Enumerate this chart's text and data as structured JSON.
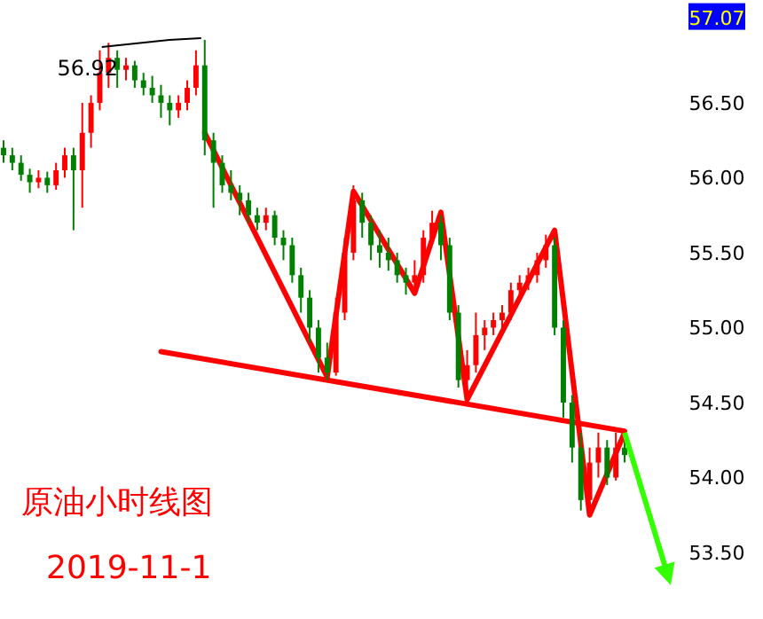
{
  "chart_data": {
    "type": "candlestick",
    "title": "原油小时线图",
    "subtitle": "2019-11-1",
    "categories": [
      null,
      null,
      null,
      null,
      null,
      null,
      null,
      null,
      null,
      null,
      null,
      null,
      null,
      null,
      null,
      null,
      null,
      null,
      null,
      null,
      null,
      null,
      null,
      null,
      null,
      null,
      null,
      null,
      null,
      null,
      null,
      null,
      null,
      null,
      null,
      null,
      null,
      null,
      null,
      null,
      null,
      null,
      null,
      null,
      null,
      null,
      null,
      null,
      null,
      null,
      null,
      null,
      null,
      null,
      null,
      null,
      null,
      null,
      null,
      null,
      null,
      null,
      null,
      null,
      null,
      null,
      null,
      null,
      null,
      null,
      null,
      null
    ],
    "ohlc": [
      [
        56.2,
        56.25,
        56.1,
        56.15
      ],
      [
        56.15,
        56.2,
        56.05,
        56.1
      ],
      [
        56.1,
        56.15,
        55.98,
        56.02
      ],
      [
        56.02,
        56.06,
        55.9,
        55.97
      ],
      [
        55.97,
        56.05,
        55.93,
        56.0
      ],
      [
        56.0,
        56.04,
        55.9,
        55.95
      ],
      [
        55.95,
        56.1,
        55.92,
        56.05
      ],
      [
        56.05,
        56.2,
        56.0,
        56.15
      ],
      [
        56.15,
        56.2,
        55.65,
        56.05
      ],
      [
        56.05,
        56.5,
        55.8,
        56.3
      ],
      [
        56.3,
        56.55,
        56.2,
        56.5
      ],
      [
        56.5,
        56.85,
        56.45,
        56.7
      ],
      [
        56.7,
        56.9,
        56.6,
        56.8
      ],
      [
        56.8,
        56.85,
        56.6,
        56.72
      ],
      [
        56.72,
        56.8,
        56.65,
        56.75
      ],
      [
        56.75,
        56.78,
        56.6,
        56.65
      ],
      [
        56.65,
        56.7,
        56.55,
        56.6
      ],
      [
        56.6,
        56.68,
        56.5,
        56.55
      ],
      [
        56.55,
        56.62,
        56.4,
        56.5
      ],
      [
        56.5,
        56.55,
        56.35,
        56.45
      ],
      [
        56.45,
        56.55,
        56.4,
        56.5
      ],
      [
        56.5,
        56.65,
        56.45,
        56.6
      ],
      [
        56.6,
        56.85,
        56.55,
        56.75
      ],
      [
        56.75,
        56.92,
        56.15,
        56.25
      ],
      [
        56.25,
        56.3,
        55.8,
        56.1
      ],
      [
        56.1,
        56.15,
        55.9,
        55.95
      ],
      [
        55.95,
        56.05,
        55.85,
        55.9
      ],
      [
        55.9,
        55.95,
        55.75,
        55.85
      ],
      [
        55.85,
        55.9,
        55.7,
        55.75
      ],
      [
        55.75,
        55.8,
        55.65,
        55.7
      ],
      [
        55.7,
        55.8,
        55.65,
        55.75
      ],
      [
        55.75,
        55.78,
        55.55,
        55.6
      ],
      [
        55.6,
        55.65,
        55.45,
        55.55
      ],
      [
        55.55,
        55.6,
        55.3,
        55.35
      ],
      [
        55.35,
        55.4,
        55.1,
        55.2
      ],
      [
        55.2,
        55.25,
        54.9,
        55.0
      ],
      [
        55.0,
        55.05,
        54.7,
        54.8
      ],
      [
        54.8,
        54.9,
        54.65,
        54.7
      ],
      [
        54.7,
        55.2,
        54.68,
        55.1
      ],
      [
        55.1,
        55.6,
        55.05,
        55.5
      ],
      [
        55.5,
        55.95,
        55.45,
        55.85
      ],
      [
        55.85,
        55.9,
        55.6,
        55.7
      ],
      [
        55.7,
        55.75,
        55.45,
        55.55
      ],
      [
        55.55,
        55.65,
        55.4,
        55.5
      ],
      [
        55.5,
        55.6,
        55.38,
        55.45
      ],
      [
        55.45,
        55.5,
        55.3,
        55.35
      ],
      [
        55.35,
        55.4,
        55.22,
        55.3
      ],
      [
        55.3,
        55.45,
        55.25,
        55.35
      ],
      [
        55.35,
        55.65,
        55.3,
        55.6
      ],
      [
        55.6,
        55.78,
        55.55,
        55.7
      ],
      [
        55.7,
        55.75,
        55.45,
        55.55
      ],
      [
        55.55,
        55.6,
        55.05,
        55.1
      ],
      [
        55.1,
        55.15,
        54.6,
        54.65
      ],
      [
        54.65,
        54.85,
        54.6,
        54.75
      ],
      [
        54.75,
        55.1,
        54.7,
        54.95
      ],
      [
        54.95,
        55.05,
        54.85,
        55.0
      ],
      [
        55.0,
        55.1,
        54.95,
        55.05
      ],
      [
        55.05,
        55.15,
        55.0,
        55.1
      ],
      [
        55.1,
        55.3,
        55.05,
        55.25
      ],
      [
        55.25,
        55.35,
        55.2,
        55.3
      ],
      [
        55.3,
        55.4,
        55.25,
        55.35
      ],
      [
        55.35,
        55.5,
        55.3,
        55.45
      ],
      [
        55.45,
        55.62,
        55.4,
        55.55
      ],
      [
        55.55,
        55.6,
        54.95,
        55.0
      ],
      [
        55.0,
        55.05,
        54.4,
        54.5
      ],
      [
        54.5,
        54.55,
        54.1,
        54.2
      ],
      [
        54.2,
        54.3,
        53.78,
        53.85
      ],
      [
        53.85,
        54.2,
        53.8,
        54.1
      ],
      [
        54.1,
        54.3,
        54.0,
        54.2
      ],
      [
        54.2,
        54.25,
        53.95,
        54.0
      ],
      [
        54.0,
        54.3,
        53.98,
        54.2
      ],
      [
        54.2,
        54.25,
        54.1,
        54.15
      ]
    ],
    "series": [
      {
        "type": "line",
        "color": "#ff0000",
        "values": [
          null,
          null,
          null,
          null,
          null,
          null,
          null,
          null,
          null,
          null,
          null,
          null,
          null,
          null,
          null,
          null,
          null,
          null,
          null,
          null,
          null,
          null,
          null,
          56.3,
          null,
          null,
          null,
          null,
          null,
          null,
          null,
          null,
          null,
          null,
          null,
          null,
          null,
          54.67,
          null,
          null,
          55.91,
          null,
          null,
          null,
          null,
          null,
          null,
          55.23,
          null,
          null,
          55.77,
          null,
          null,
          54.52,
          null,
          null,
          null,
          null,
          null,
          null,
          null,
          null,
          null,
          55.65,
          null,
          null,
          null,
          53.75,
          null,
          null,
          null,
          54.3
        ]
      },
      {
        "type": "line",
        "color": "#ff0000",
        "values": [
          null,
          null,
          null,
          null,
          null,
          null,
          null,
          null,
          null,
          null,
          null,
          null,
          null,
          null,
          null,
          null,
          null,
          null,
          54.84,
          null,
          null,
          null,
          null,
          null,
          null,
          null,
          null,
          null,
          null,
          null,
          null,
          null,
          null,
          null,
          null,
          null,
          null,
          null,
          null,
          null,
          null,
          null,
          null,
          null,
          null,
          null,
          null,
          null,
          null,
          null,
          null,
          null,
          null,
          null,
          null,
          null,
          null,
          null,
          null,
          null,
          null,
          null,
          null,
          null,
          null,
          null,
          null,
          null,
          null,
          null,
          null,
          54.31
        ]
      }
    ],
    "annotations": [
      "56.92"
    ],
    "ylim": [
      53.5,
      57.07
    ],
    "yticks": [
      {
        "value": 53.5,
        "label": "53.50"
      },
      {
        "value": 54,
        "label": "54.00"
      },
      {
        "value": 54.5,
        "label": "54.50"
      },
      {
        "value": 55,
        "label": "55.00"
      },
      {
        "value": 55.5,
        "label": "55.50"
      },
      {
        "value": 56,
        "label": "56.00"
      },
      {
        "value": 56.5,
        "label": "56.50"
      },
      {
        "value": 57.07,
        "label": "57.07"
      }
    ],
    "tick_labels": "y",
    "grid": false
  }
}
